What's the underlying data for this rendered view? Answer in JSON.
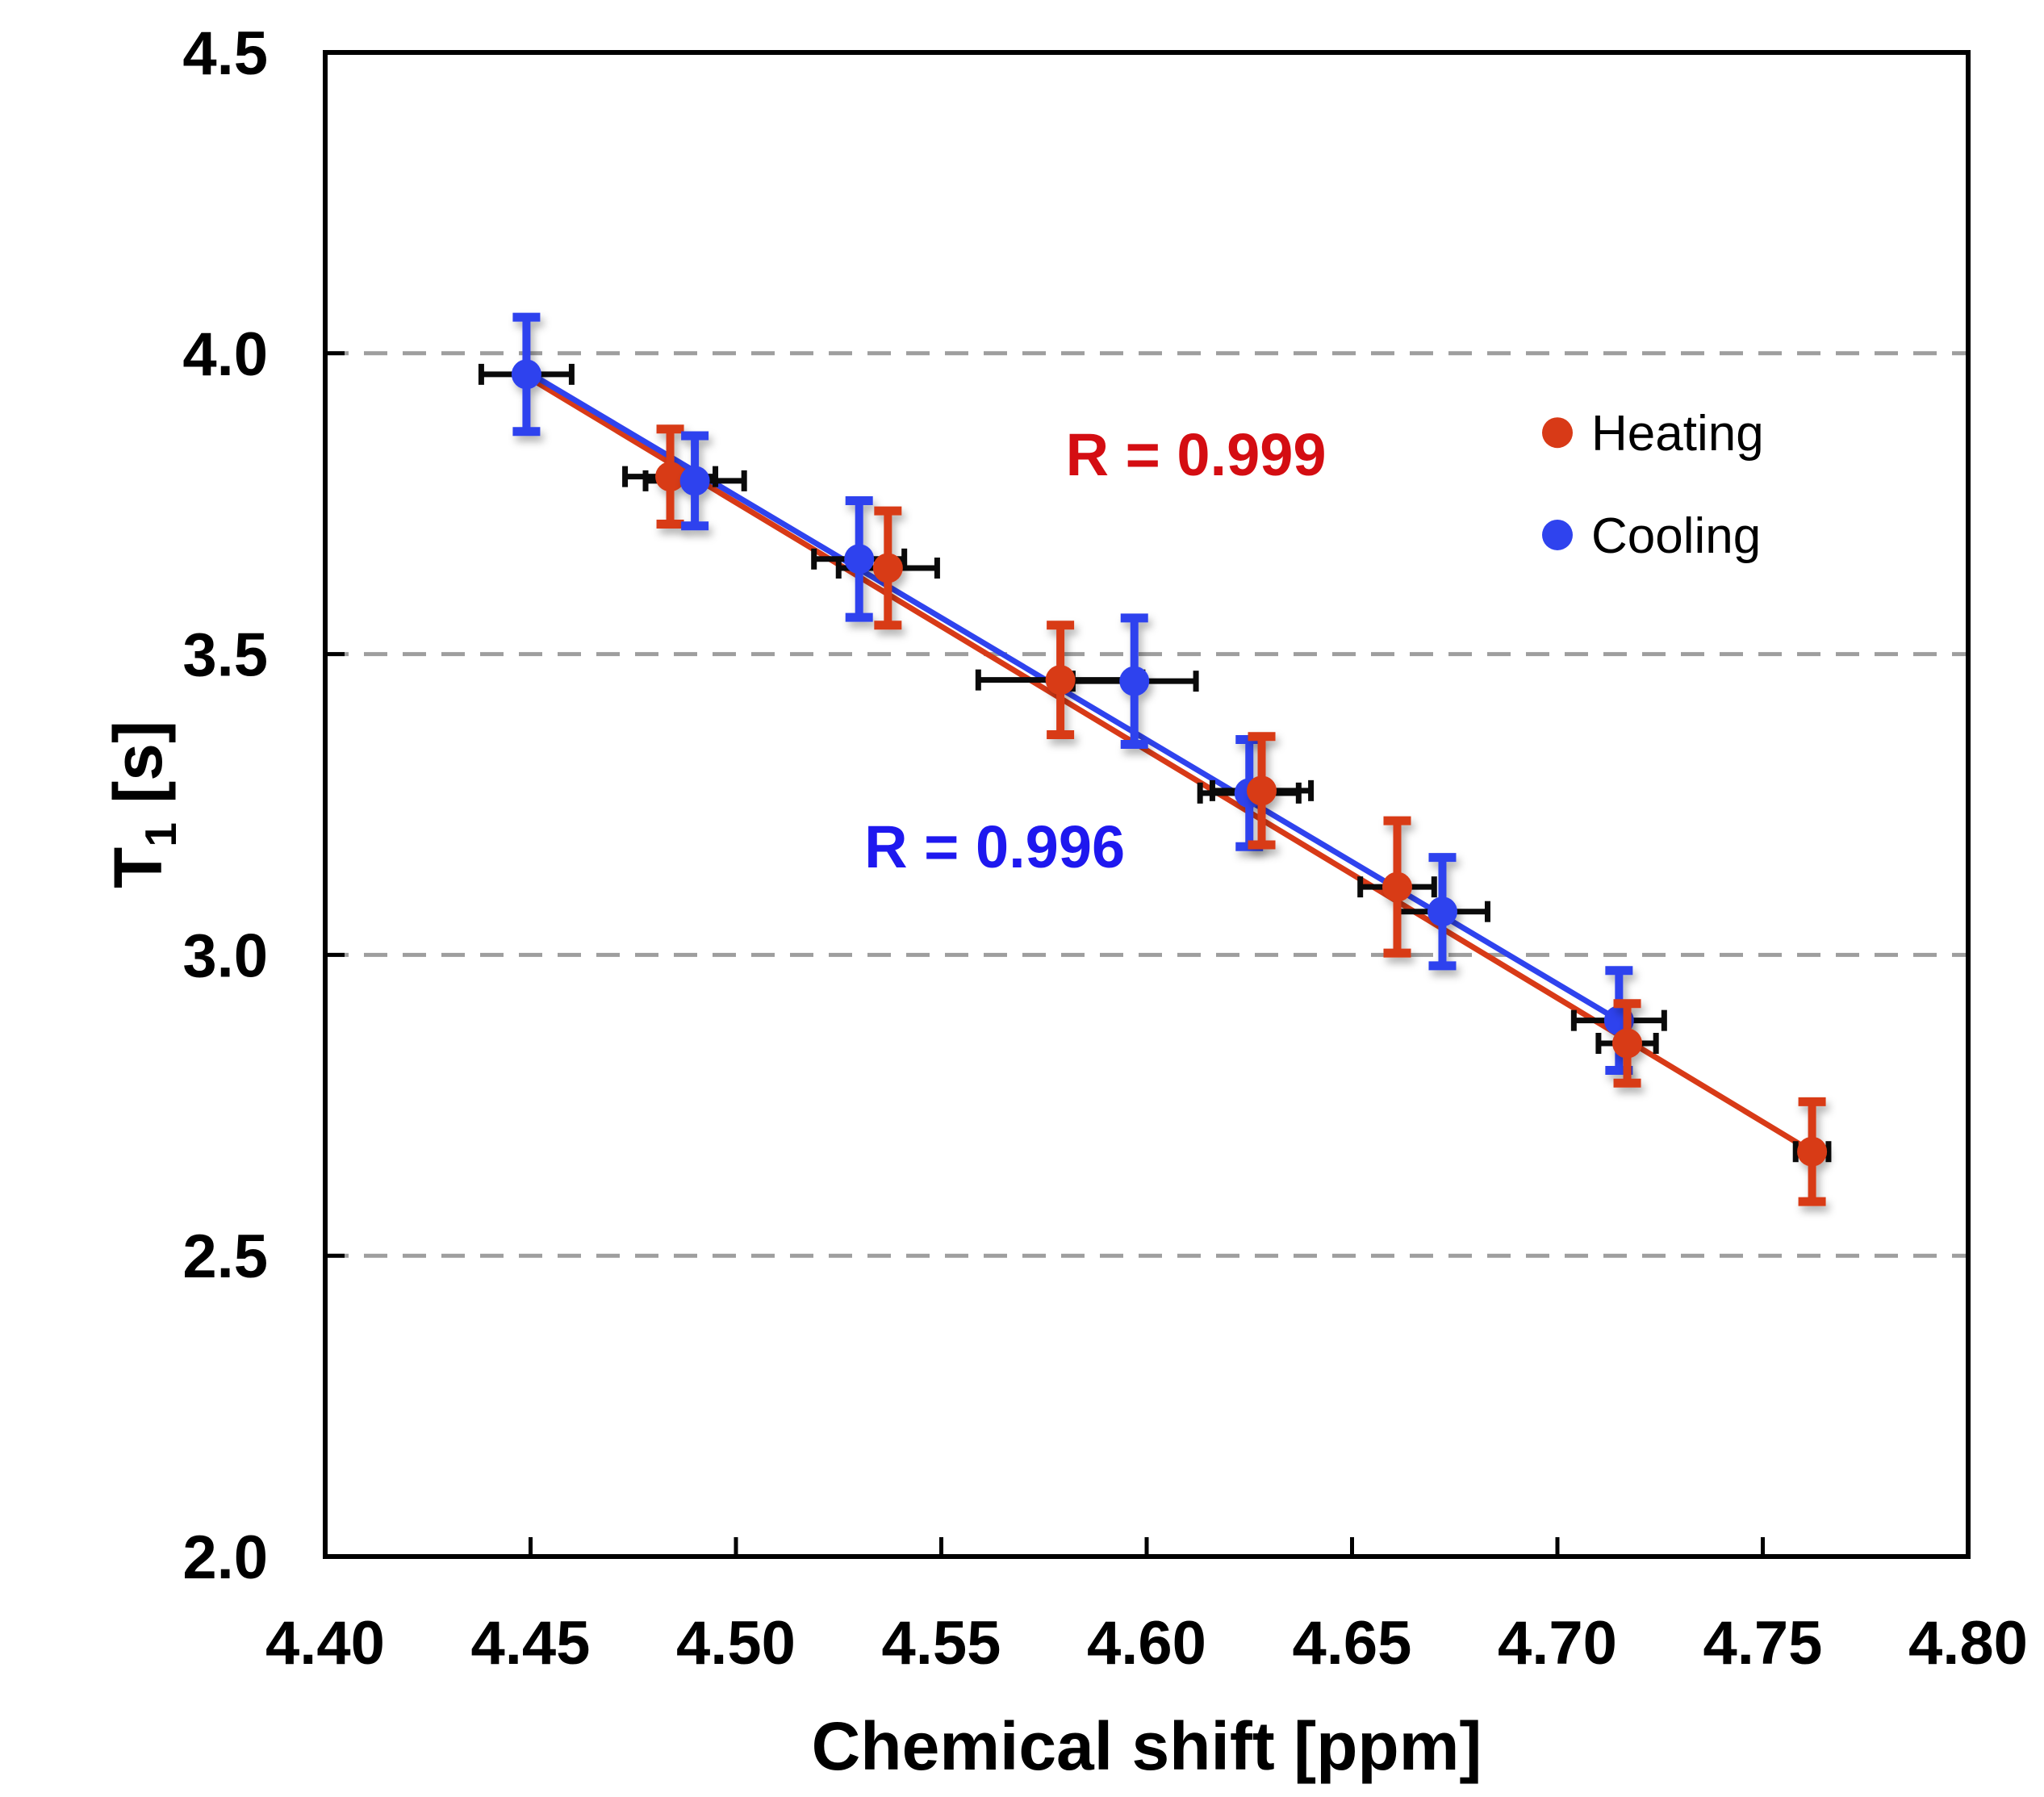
{
  "chart_data": {
    "type": "scatter",
    "title": "",
    "xlabel": "Chemical shift [ppm]",
    "ylabel": "T1 [s]",
    "ylabel_parts": {
      "base": "T",
      "sub": "1",
      "unit": " [s]"
    },
    "xlim": [
      4.4,
      4.8
    ],
    "ylim": [
      2.0,
      4.5
    ],
    "x_tick_labels": [
      "4.40",
      "4.45",
      "4.50",
      "4.55",
      "4.60",
      "4.65",
      "4.70",
      "4.75",
      "4.80"
    ],
    "y_tick_labels": [
      "2.0",
      "2.5",
      "3.0",
      "3.5",
      "4.0",
      "4.5"
    ],
    "gridlines_y": [
      2.5,
      3.0,
      3.5,
      4.0
    ],
    "grid_on": true,
    "grid_color": "#9e9e9e",
    "axis_color": "#000000",
    "error_bar_cross_color": "#0a0a0a",
    "legend_position": "upper right inside",
    "series": [
      {
        "name": "Heating",
        "color": "#d83a17",
        "x": [
          4.484,
          4.537,
          4.579,
          4.628,
          4.661,
          4.717,
          4.762
        ],
        "y": [
          3.795,
          3.643,
          3.457,
          3.273,
          3.113,
          2.853,
          2.673
        ],
        "yerr": [
          0.079,
          0.095,
          0.091,
          0.09,
          0.11,
          0.066,
          0.083
        ],
        "xerr": [
          0.011,
          0.012,
          0.02,
          0.012,
          0.009,
          0.007,
          0.004
        ],
        "fit_line": {
          "x1": 4.449,
          "y1": 3.962,
          "x2": 4.762,
          "y2": 2.673
        },
        "r_annotation": {
          "text": "R = 0.999",
          "color": "#d40d12",
          "x": 4.612,
          "y": 3.832
        }
      },
      {
        "name": "Cooling",
        "color": "#2f43ee",
        "x": [
          4.449,
          4.49,
          4.53,
          4.597,
          4.625,
          4.672,
          4.715
        ],
        "y": [
          3.965,
          3.788,
          3.658,
          3.455,
          3.269,
          3.072,
          2.891
        ],
        "yerr": [
          0.095,
          0.075,
          0.097,
          0.105,
          0.089,
          0.09,
          0.083
        ],
        "xerr": [
          0.011,
          0.012,
          0.011,
          0.015,
          0.012,
          0.011,
          0.011
        ],
        "fit_line": {
          "x1": 4.449,
          "y1": 3.97,
          "x2": 4.715,
          "y2": 2.891
        },
        "r_annotation": {
          "text": "R = 0.996",
          "color": "#1e18ef",
          "x": 4.563,
          "y": 3.18
        }
      }
    ],
    "legend": {
      "anchor_x": 4.7,
      "item_y": [
        3.868,
        3.698
      ],
      "items": [
        {
          "label": "Heating",
          "color": "#d83a17"
        },
        {
          "label": "Cooling",
          "color": "#2f43ee"
        }
      ]
    }
  }
}
